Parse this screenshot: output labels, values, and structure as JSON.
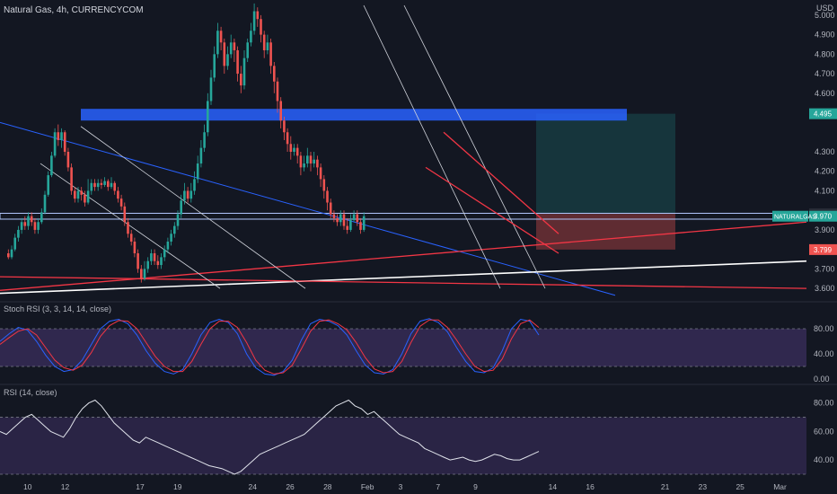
{
  "chart_data": {
    "type": "candlestick",
    "title": "Natural Gas, 4h, CURRENCYCOM",
    "currency_label": "USD",
    "colors": {
      "background": "#131722",
      "up": "#26a69a",
      "down": "#ef5350",
      "zone_blue": "#2962ff",
      "white_line": "#ffffff",
      "red_line": "#f23645",
      "blue_trend": "#2962ff",
      "grid": "#2a2e39",
      "stoch_k": "#2962ff",
      "stoch_d": "#f23645",
      "rsi_line": "#e0e3eb",
      "band": "#7e57c2",
      "tp_zone": "#26a69a",
      "sl_zone": "#ef5350"
    },
    "price_axis": {
      "ticks": [
        "5.000",
        "4.900",
        "4.800",
        "4.700",
        "4.600",
        "4.300",
        "4.200",
        "4.100",
        "3.900",
        "3.700",
        "3.600"
      ],
      "range": [
        3.55,
        5.05
      ],
      "labels": [
        {
          "text": "4.495",
          "value": 4.495,
          "color": "#26a69a"
        },
        {
          "text": "3.982",
          "value": 3.982,
          "color": "#2a2e39"
        },
        {
          "text": "3.970",
          "value": 3.97,
          "color": "#26a69a"
        },
        {
          "text": "3.799",
          "value": 3.799,
          "color": "#ef5350"
        }
      ],
      "symbol_tag": "NATURALGAS"
    },
    "time_axis": {
      "labels": [
        "10",
        "12",
        "17",
        "19",
        "24",
        "26",
        "28",
        "Feb",
        "3",
        "7",
        "9",
        "14",
        "16",
        "21",
        "23",
        "25",
        "Mar"
      ],
      "label_index": [
        0,
        12,
        36,
        48,
        72,
        84,
        96,
        108,
        120,
        132,
        144,
        168,
        180,
        204,
        216,
        228,
        240
      ]
    },
    "candles": [
      [
        3.78,
        3.76,
        3.8,
        3.75
      ],
      [
        3.76,
        3.8,
        3.82,
        3.75
      ],
      [
        3.8,
        3.86,
        3.88,
        3.79
      ],
      [
        3.86,
        3.9,
        3.92,
        3.84
      ],
      [
        3.9,
        3.94,
        3.96,
        3.88
      ],
      [
        3.94,
        3.92,
        3.97,
        3.9
      ],
      [
        3.92,
        3.97,
        3.99,
        3.9
      ],
      [
        3.97,
        3.94,
        3.99,
        3.92
      ],
      [
        3.94,
        3.9,
        3.96,
        3.88
      ],
      [
        3.9,
        3.94,
        3.96,
        3.88
      ],
      [
        3.94,
        3.99,
        4.01,
        3.93
      ],
      [
        3.99,
        4.08,
        4.1,
        3.98
      ],
      [
        4.08,
        4.18,
        4.2,
        4.07
      ],
      [
        4.18,
        4.28,
        4.3,
        4.17
      ],
      [
        4.28,
        4.4,
        4.42,
        4.27
      ],
      [
        4.4,
        4.36,
        4.44,
        4.33
      ],
      [
        4.36,
        4.4,
        4.42,
        4.32
      ],
      [
        4.4,
        4.3,
        4.41,
        4.28
      ],
      [
        4.3,
        4.22,
        4.32,
        4.2
      ],
      [
        4.22,
        4.1,
        4.24,
        4.08
      ],
      [
        4.1,
        4.06,
        4.12,
        4.04
      ],
      [
        4.06,
        4.1,
        4.12,
        4.04
      ],
      [
        4.1,
        4.08,
        4.12,
        4.05
      ],
      [
        4.08,
        4.04,
        4.1,
        4.02
      ],
      [
        4.04,
        4.1,
        4.16,
        4.03
      ],
      [
        4.1,
        4.14,
        4.16,
        4.08
      ],
      [
        4.14,
        4.12,
        4.16,
        4.1
      ],
      [
        4.12,
        4.14,
        4.16,
        4.1
      ],
      [
        4.14,
        4.13,
        4.16,
        4.11
      ],
      [
        4.13,
        4.15,
        4.17,
        4.12
      ],
      [
        4.15,
        4.12,
        4.16,
        4.1
      ],
      [
        4.12,
        4.14,
        4.17,
        4.11
      ],
      [
        4.14,
        4.1,
        4.15,
        4.08
      ],
      [
        4.1,
        4.06,
        4.12,
        4.04
      ],
      [
        4.06,
        4.02,
        4.08,
        4.0
      ],
      [
        4.02,
        3.94,
        4.04,
        3.92
      ],
      [
        3.94,
        3.88,
        3.96,
        3.86
      ],
      [
        3.88,
        3.84,
        3.9,
        3.82
      ],
      [
        3.84,
        3.78,
        3.86,
        3.76
      ],
      [
        3.78,
        3.7,
        3.8,
        3.68
      ],
      [
        3.7,
        3.65,
        3.72,
        3.63
      ],
      [
        3.65,
        3.7,
        3.74,
        3.64
      ],
      [
        3.7,
        3.74,
        3.76,
        3.68
      ],
      [
        3.74,
        3.78,
        3.8,
        3.72
      ],
      [
        3.78,
        3.74,
        3.8,
        3.72
      ],
      [
        3.74,
        3.72,
        3.77,
        3.7
      ],
      [
        3.72,
        3.76,
        3.78,
        3.7
      ],
      [
        3.76,
        3.8,
        3.82,
        3.74
      ],
      [
        3.8,
        3.84,
        3.86,
        3.78
      ],
      [
        3.84,
        3.88,
        3.9,
        3.82
      ],
      [
        3.88,
        3.92,
        3.94,
        3.86
      ],
      [
        3.92,
        3.98,
        4.0,
        3.9
      ],
      [
        3.98,
        4.05,
        4.08,
        3.96
      ],
      [
        4.05,
        4.1,
        4.14,
        4.03
      ],
      [
        4.1,
        4.06,
        4.12,
        4.04
      ],
      [
        4.06,
        4.1,
        4.14,
        4.04
      ],
      [
        4.1,
        4.16,
        4.2,
        4.08
      ],
      [
        4.16,
        4.24,
        4.28,
        4.14
      ],
      [
        4.24,
        4.32,
        4.36,
        4.22
      ],
      [
        4.32,
        4.4,
        4.44,
        4.3
      ],
      [
        4.4,
        4.56,
        4.6,
        4.38
      ],
      [
        4.56,
        4.68,
        4.72,
        4.54
      ],
      [
        4.68,
        4.8,
        4.84,
        4.66
      ],
      [
        4.8,
        4.92,
        4.96,
        4.78
      ],
      [
        4.92,
        4.86,
        4.94,
        4.82
      ],
      [
        4.86,
        4.74,
        4.88,
        4.7
      ],
      [
        4.74,
        4.8,
        4.84,
        4.72
      ],
      [
        4.8,
        4.86,
        4.9,
        4.78
      ],
      [
        4.86,
        4.82,
        4.88,
        4.76
      ],
      [
        4.82,
        4.7,
        4.84,
        4.66
      ],
      [
        4.7,
        4.64,
        4.74,
        4.6
      ],
      [
        4.64,
        4.78,
        4.82,
        4.62
      ],
      [
        4.78,
        4.86,
        4.88,
        4.76
      ],
      [
        4.86,
        4.92,
        4.96,
        4.84
      ],
      [
        4.92,
        5.02,
        5.06,
        4.9
      ],
      [
        5.02,
        4.98,
        5.04,
        4.94
      ],
      [
        4.98,
        4.9,
        5.0,
        4.86
      ],
      [
        4.9,
        4.82,
        4.92,
        4.78
      ],
      [
        4.82,
        4.86,
        4.9,
        4.8
      ],
      [
        4.86,
        4.74,
        4.88,
        4.7
      ],
      [
        4.74,
        4.66,
        4.76,
        4.6
      ],
      [
        4.66,
        4.56,
        4.68,
        4.5
      ],
      [
        4.56,
        4.46,
        4.58,
        4.42
      ],
      [
        4.46,
        4.4,
        4.48,
        4.36
      ],
      [
        4.4,
        4.34,
        4.42,
        4.3
      ],
      [
        4.34,
        4.3,
        4.38,
        4.26
      ],
      [
        4.3,
        4.32,
        4.34,
        4.28
      ],
      [
        4.32,
        4.28,
        4.34,
        4.24
      ],
      [
        4.28,
        4.22,
        4.3,
        4.18
      ],
      [
        4.22,
        4.24,
        4.28,
        4.2
      ],
      [
        4.24,
        4.28,
        4.32,
        4.22
      ],
      [
        4.28,
        4.24,
        4.3,
        4.2
      ],
      [
        4.24,
        4.26,
        4.3,
        4.22
      ],
      [
        4.26,
        4.22,
        4.28,
        4.18
      ],
      [
        4.22,
        4.16,
        4.24,
        4.12
      ],
      [
        4.16,
        4.1,
        4.18,
        4.06
      ],
      [
        4.1,
        4.04,
        4.12,
        4.0
      ],
      [
        4.04,
        3.98,
        4.06,
        3.96
      ],
      [
        3.98,
        3.96,
        4.0,
        3.94
      ],
      [
        3.96,
        3.94,
        3.98,
        3.92
      ],
      [
        3.94,
        3.98,
        4.0,
        3.92
      ],
      [
        3.98,
        3.92,
        4.0,
        3.9
      ],
      [
        3.92,
        3.9,
        3.96,
        3.88
      ],
      [
        3.9,
        3.95,
        3.98,
        3.89
      ],
      [
        3.95,
        3.98,
        4.0,
        3.94
      ],
      [
        3.98,
        3.94,
        4.0,
        3.92
      ],
      [
        3.94,
        3.9,
        3.96,
        3.88
      ],
      [
        3.9,
        3.97,
        3.99,
        3.89
      ]
    ],
    "stoch_rsi": {
      "title": "Stoch RSI (3, 3, 14, 14, close)",
      "axis_labels": [
        "80.00",
        "40.00",
        "0.00"
      ],
      "range": [
        0,
        100
      ],
      "upper": 80,
      "lower": 20,
      "k": [
        60,
        72,
        82,
        78,
        60,
        38,
        20,
        12,
        15,
        30,
        55,
        80,
        92,
        95,
        88,
        70,
        45,
        25,
        12,
        8,
        15,
        40,
        70,
        90,
        95,
        90,
        72,
        40,
        18,
        8,
        6,
        12,
        30,
        62,
        88,
        95,
        92,
        85,
        70,
        45,
        22,
        10,
        8,
        15,
        40,
        72,
        92,
        96,
        90,
        75,
        50,
        28,
        12,
        10,
        18,
        45,
        80,
        95,
        92,
        70
      ],
      "d": [
        55,
        66,
        76,
        80,
        70,
        50,
        30,
        18,
        14,
        22,
        42,
        68,
        85,
        93,
        92,
        80,
        58,
        36,
        20,
        12,
        12,
        28,
        55,
        80,
        92,
        92,
        82,
        58,
        30,
        14,
        8,
        10,
        22,
        48,
        76,
        92,
        94,
        88,
        78,
        58,
        34,
        16,
        10,
        12,
        28,
        58,
        84,
        94,
        94,
        82,
        62,
        40,
        20,
        12,
        14,
        32,
        64,
        88,
        94,
        82
      ]
    },
    "rsi": {
      "title": "RSI (14, close)",
      "axis_labels": [
        "80.00",
        "60.00",
        "40.00"
      ],
      "range": [
        30,
        88
      ],
      "upper": 70,
      "lower": 30,
      "values": [
        60,
        58,
        62,
        66,
        70,
        72,
        68,
        64,
        60,
        58,
        56,
        62,
        70,
        76,
        80,
        82,
        78,
        72,
        66,
        62,
        58,
        54,
        52,
        56,
        54,
        52,
        50,
        48,
        46,
        44,
        42,
        40,
        38,
        36,
        35,
        34,
        32,
        30,
        32,
        36,
        40,
        44,
        46,
        48,
        50,
        52,
        54,
        56,
        58,
        62,
        66,
        70,
        74,
        78,
        80,
        82,
        78,
        76,
        72,
        74,
        70,
        66,
        62,
        58,
        56,
        54,
        52,
        48,
        46,
        44,
        42,
        40,
        41,
        42,
        40,
        39,
        40,
        42,
        44,
        43,
        41,
        40,
        40,
        42,
        44,
        46
      ]
    }
  }
}
